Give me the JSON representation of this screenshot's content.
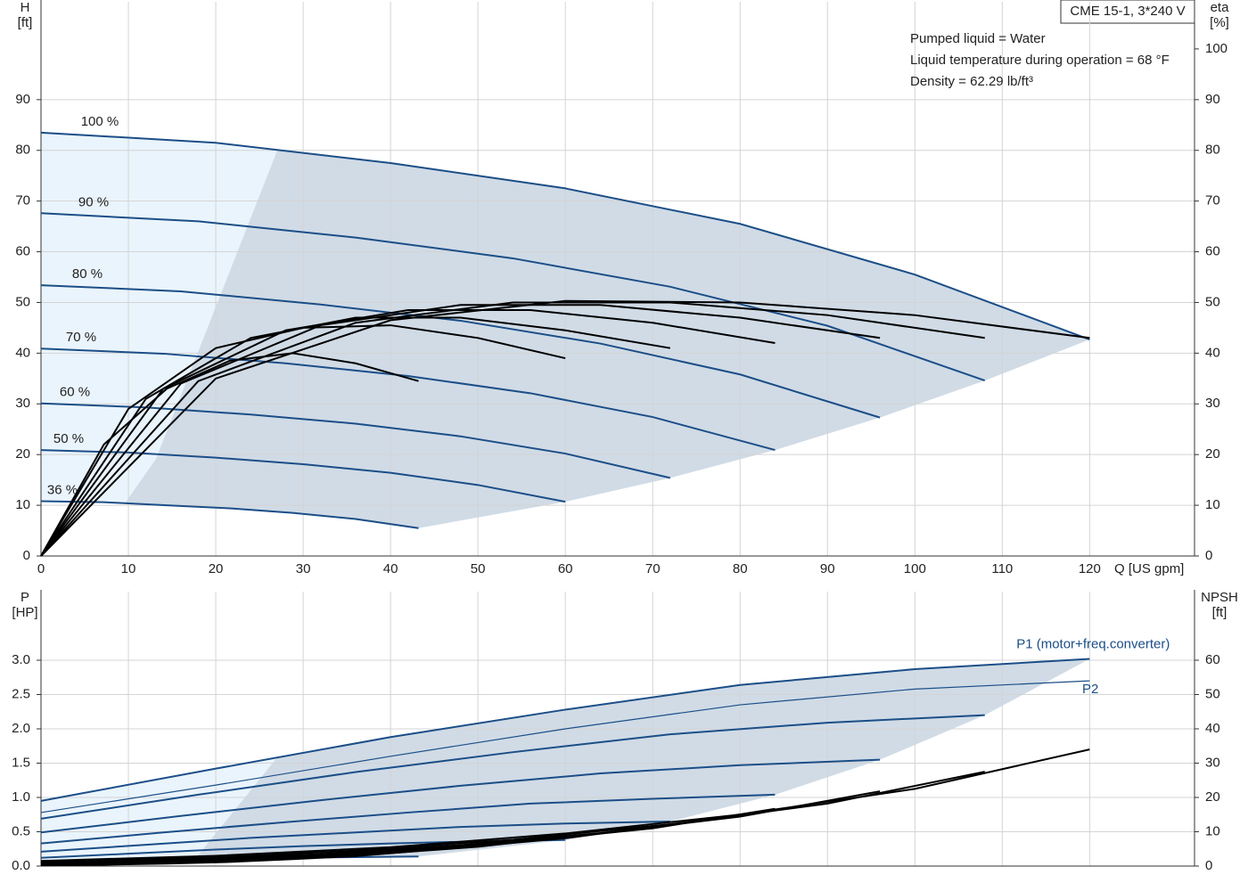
{
  "chart_data": [
    {
      "type": "line",
      "title": "CME 15-1, 3*240 V",
      "annotations": [
        "Pumped liquid = Water",
        "Liquid temperature during operation = 68 °F",
        "Density = 62.29 lb/ft³"
      ],
      "x_label": "Q [US gpm]",
      "y_label": "H",
      "y_unit": "[ft]",
      "y2_label": "eta",
      "y2_unit": "[%]",
      "xlim": [
        0,
        132
      ],
      "xticks": [
        0,
        10,
        20,
        30,
        40,
        50,
        60,
        70,
        80,
        90,
        100,
        110,
        120
      ],
      "ylim": [
        0,
        109.3
      ],
      "yticks": [
        0,
        10,
        20,
        30,
        40,
        50,
        60,
        70,
        80,
        90
      ],
      "y2lim": [
        0,
        109.3
      ],
      "y2ticks": [
        0,
        10,
        20,
        30,
        40,
        50,
        60,
        70,
        80,
        90,
        100
      ],
      "grid": true,
      "series": [
        {
          "name": "100 %",
          "color": "#1b4e87",
          "x": [
            0,
            20,
            40,
            60,
            80,
            100,
            120
          ],
          "values": [
            83.5,
            81.5,
            77.5,
            72.5,
            65.5,
            55.5,
            42.7
          ]
        },
        {
          "name": "90 %",
          "color": "#1b4e87",
          "x": [
            0,
            18,
            36,
            54,
            72,
            90,
            108
          ],
          "values": [
            67.6,
            66.0,
            62.8,
            58.7,
            53.1,
            45.4,
            34.6
          ]
        },
        {
          "name": "80 %",
          "color": "#1b4e87",
          "x": [
            0,
            16,
            32,
            48,
            64,
            80,
            96
          ],
          "values": [
            53.4,
            52.2,
            49.6,
            46.4,
            41.9,
            35.8,
            27.3
          ]
        },
        {
          "name": "70 %",
          "color": "#1b4e87",
          "x": [
            0,
            14,
            28,
            42,
            56,
            70,
            84
          ],
          "values": [
            40.9,
            39.9,
            38.0,
            35.5,
            32.1,
            27.4,
            20.9
          ]
        },
        {
          "name": "60 %",
          "color": "#1b4e87",
          "x": [
            0,
            12,
            24,
            36,
            48,
            60,
            72
          ],
          "values": [
            30.1,
            29.3,
            27.9,
            26.1,
            23.6,
            20.2,
            15.4
          ]
        },
        {
          "name": "50 %",
          "color": "#1b4e87",
          "x": [
            0,
            10,
            20,
            30,
            40,
            50,
            60
          ],
          "values": [
            20.9,
            20.4,
            19.4,
            18.1,
            16.4,
            14.0,
            10.7
          ]
        },
        {
          "name": "36 %",
          "color": "#1b4e87",
          "x": [
            0,
            7.2,
            14.4,
            21.6,
            28.8,
            36,
            43.2
          ],
          "values": [
            10.8,
            10.6,
            10.0,
            9.4,
            8.5,
            7.3,
            5.5
          ]
        },
        {
          "axis": "y2",
          "color": "#000000",
          "x": [
            0,
            20,
            40,
            60,
            80,
            100,
            120
          ],
          "values": [
            0,
            35,
            46.5,
            50.3,
            50,
            47.5,
            43
          ]
        },
        {
          "axis": "y2",
          "color": "#000000",
          "x": [
            0,
            18,
            36,
            54,
            72,
            90,
            108
          ],
          "values": [
            0,
            34.5,
            46,
            50,
            50,
            47.5,
            43
          ]
        },
        {
          "axis": "y2",
          "color": "#000000",
          "x": [
            0,
            16,
            32,
            48,
            64,
            80,
            96
          ],
          "values": [
            0,
            34,
            45.5,
            49.5,
            49.5,
            47,
            43
          ]
        },
        {
          "axis": "y2",
          "color": "#000000",
          "x": [
            0,
            14,
            28,
            42,
            56,
            70,
            84
          ],
          "values": [
            0,
            33,
            44.5,
            48.5,
            48.5,
            46,
            42
          ]
        },
        {
          "axis": "y2",
          "color": "#000000",
          "x": [
            0,
            12,
            24,
            36,
            48,
            60,
            72
          ],
          "values": [
            0,
            31,
            43,
            47,
            47,
            44.5,
            41
          ]
        },
        {
          "axis": "y2",
          "color": "#000000",
          "x": [
            0,
            10,
            20,
            30,
            40,
            50,
            60
          ],
          "values": [
            0,
            29,
            41,
            45,
            45.5,
            43,
            39
          ]
        },
        {
          "axis": "y2",
          "color": "#000000",
          "x": [
            0,
            7.2,
            14.4,
            21.6,
            28.8,
            36,
            43.2
          ],
          "values": [
            0,
            22,
            33,
            38.5,
            40,
            38,
            34.5
          ]
        }
      ]
    },
    {
      "type": "line",
      "y_label": "P",
      "y_unit": "[HP]",
      "y2_label": "NPSH",
      "y2_unit": "[ft]",
      "xlim": [
        0,
        132
      ],
      "xticks": [
        0,
        10,
        20,
        30,
        40,
        50,
        60,
        70,
        80,
        90,
        100,
        110,
        120
      ],
      "ylim": [
        0,
        4.0
      ],
      "yticks": [
        {
          "value": 0,
          "label": "0.0"
        },
        0.5,
        {
          "value": 1,
          "label": "1.0"
        },
        1.5,
        {
          "value": 2,
          "label": "2.0"
        },
        2.5,
        {
          "value": 3,
          "label": "3.0"
        }
      ],
      "y2lim": [
        0,
        80
      ],
      "y2ticks": [
        0,
        10,
        20,
        30,
        40,
        50,
        60
      ],
      "grid": true,
      "series": [
        {
          "name": "P1 (motor+freq.converter)",
          "color": "#1b4e87",
          "x": [
            0,
            20,
            40,
            60,
            80,
            100,
            120
          ],
          "values": [
            0.95,
            1.42,
            1.88,
            2.28,
            2.64,
            2.87,
            3.02
          ]
        },
        {
          "color": "#1b4e87",
          "x": [
            0,
            18,
            36,
            54,
            72,
            90,
            108
          ],
          "values": [
            0.69,
            1.04,
            1.37,
            1.66,
            1.92,
            2.09,
            2.2
          ]
        },
        {
          "color": "#1b4e87",
          "x": [
            0,
            16,
            32,
            48,
            64,
            80,
            96
          ],
          "values": [
            0.49,
            0.73,
            0.96,
            1.17,
            1.35,
            1.47,
            1.55
          ]
        },
        {
          "color": "#1b4e87",
          "x": [
            0,
            14,
            28,
            42,
            56,
            70,
            84
          ],
          "values": [
            0.33,
            0.49,
            0.64,
            0.78,
            0.91,
            0.98,
            1.04
          ]
        },
        {
          "color": "#1b4e87",
          "x": [
            0,
            12,
            24,
            36,
            48,
            60,
            72
          ],
          "values": [
            0.21,
            0.31,
            0.41,
            0.49,
            0.57,
            0.62,
            0.65
          ]
        },
        {
          "color": "#1b4e87",
          "x": [
            0,
            10,
            20,
            30,
            40,
            50,
            60
          ],
          "values": [
            0.12,
            0.18,
            0.24,
            0.29,
            0.33,
            0.36,
            0.38
          ]
        },
        {
          "color": "#1b4e87",
          "x": [
            0,
            7.2,
            14.4,
            21.6,
            28.8,
            36,
            43.2
          ],
          "values": [
            0.04,
            0.07,
            0.09,
            0.11,
            0.12,
            0.13,
            0.14
          ]
        },
        {
          "name": "P2",
          "color": "#1b4e87",
          "x": [
            0,
            20,
            40,
            60,
            80,
            100,
            120
          ],
          "values": [
            0.78,
            1.18,
            1.6,
            2.0,
            2.35,
            2.58,
            2.7
          ]
        },
        {
          "axis": "y2",
          "color": "#000000",
          "x": [
            0,
            20,
            40,
            60,
            80,
            100,
            120
          ],
          "values": [
            1.5,
            3,
            5.5,
            9.5,
            15,
            22.5,
            34
          ]
        },
        {
          "axis": "y2",
          "color": "#000000",
          "x": [
            0,
            18,
            36,
            54,
            72,
            90,
            108
          ],
          "values": [
            1.2,
            2.4,
            4.5,
            7.7,
            12.2,
            18.2,
            27.5
          ]
        },
        {
          "axis": "y2",
          "color": "#000000",
          "x": [
            0,
            16,
            32,
            48,
            64,
            80,
            96
          ],
          "values": [
            1.0,
            1.9,
            3.5,
            6.1,
            9.6,
            14.4,
            21.8
          ]
        },
        {
          "axis": "y2",
          "color": "#000000",
          "x": [
            0,
            14,
            28,
            42,
            56,
            70,
            84
          ],
          "values": [
            0.7,
            1.5,
            2.7,
            4.7,
            7.4,
            11,
            16.7
          ]
        },
        {
          "axis": "y2",
          "color": "#000000",
          "x": [
            0,
            12,
            24,
            36,
            48,
            60,
            72
          ],
          "values": [
            0.5,
            1.1,
            2,
            3.4,
            5.4,
            8.1,
            12.2
          ]
        },
        {
          "axis": "y2",
          "color": "#000000",
          "x": [
            0,
            10,
            20,
            30,
            40,
            50,
            60
          ],
          "values": [
            0.4,
            0.8,
            1.4,
            2.4,
            3.8,
            5.6,
            8.5
          ]
        },
        {
          "axis": "y2",
          "color": "#000000",
          "x": [
            0,
            7.2,
            14.4,
            21.6,
            28.8,
            36,
            43.2
          ],
          "values": [
            0.2,
            0.4,
            0.7,
            1.2,
            2,
            2.9,
            4.4
          ]
        }
      ]
    }
  ]
}
